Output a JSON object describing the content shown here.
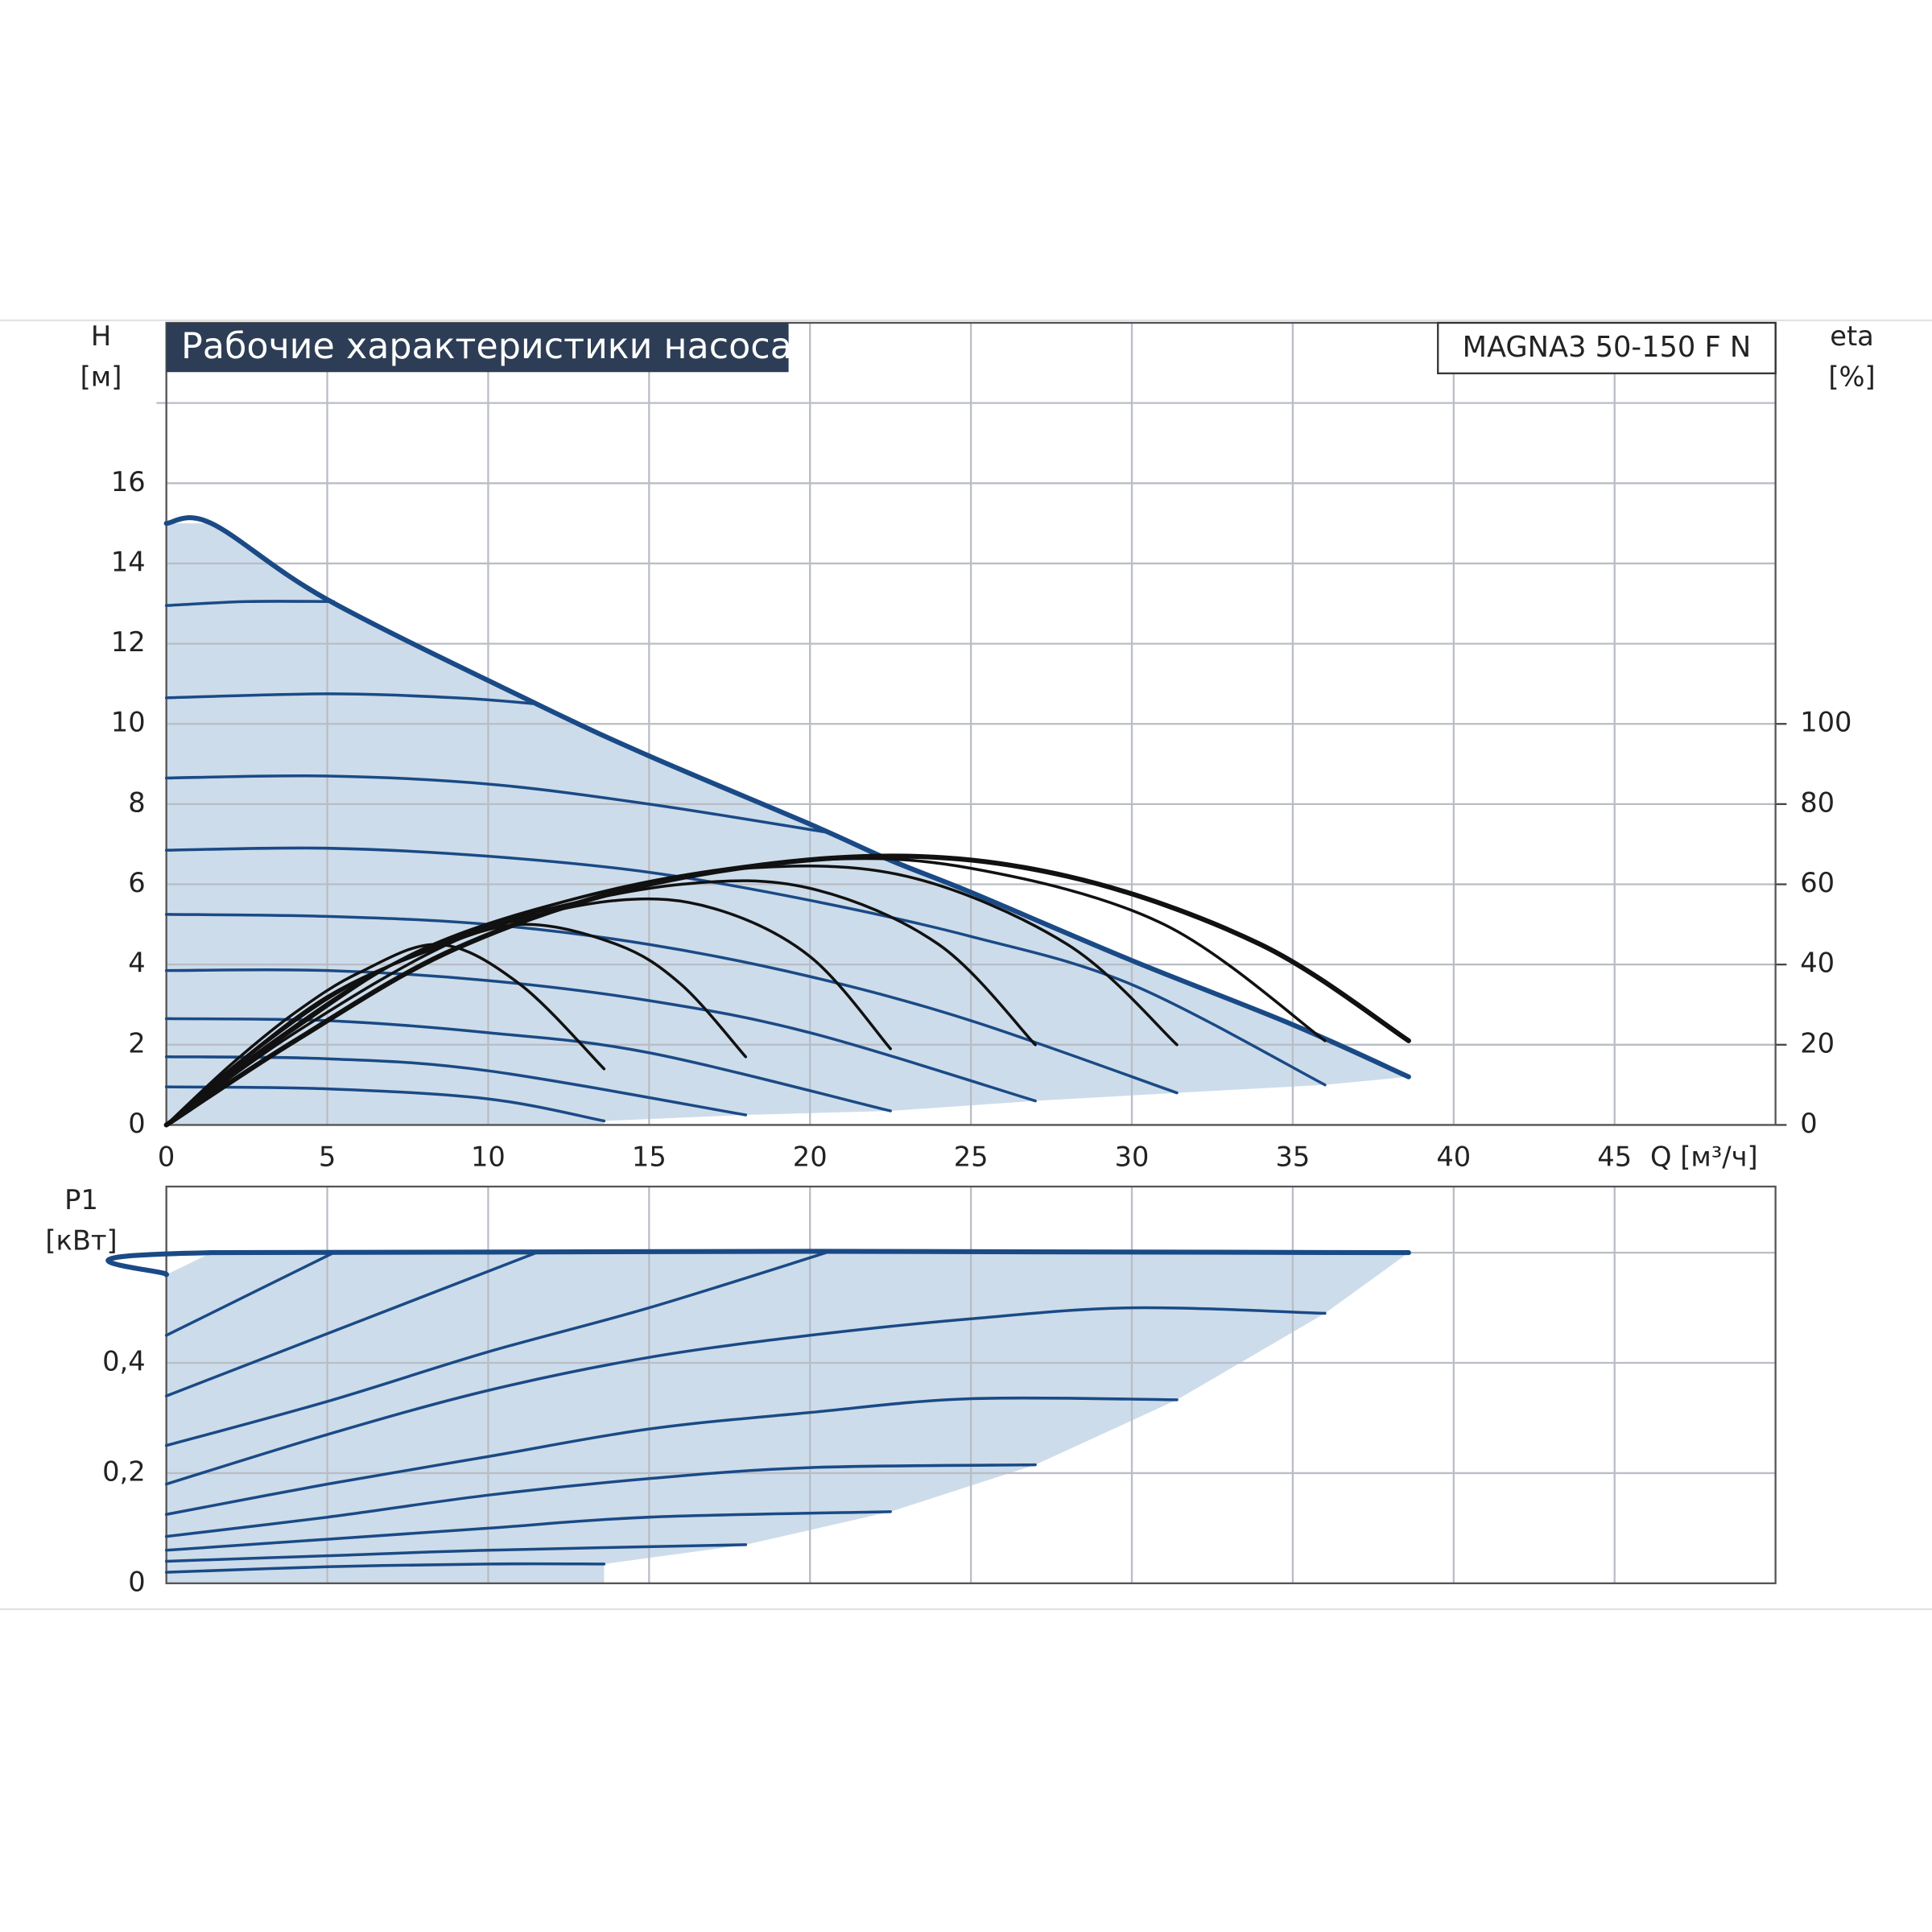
{
  "chart_data": [
    {
      "type": "line",
      "title": "Рабочие характеристики насоса",
      "model": "MAGNA3 50-150 F N",
      "ylabel_lines": [
        "H",
        "[м]"
      ],
      "y2label_lines": [
        "eta",
        "[%]"
      ],
      "xlabel": "Q [м³/ч]",
      "xlim": [
        0,
        50
      ],
      "xticks": [
        0,
        5,
        10,
        15,
        20,
        25,
        30,
        35,
        40,
        45
      ],
      "ylim": [
        0,
        20
      ],
      "yticks": [
        0,
        2,
        4,
        6,
        8,
        10,
        12,
        14,
        16
      ],
      "unlabeled_yticks": [
        18
      ],
      "y2lim": [
        0,
        200
      ],
      "y2ticks": [
        0,
        20,
        40,
        60,
        80,
        100
      ],
      "grid": true,
      "fill_color": "#cddcea",
      "series": [
        {
          "color": "#1a4a86",
          "x": [
            0,
            1.4,
            5,
            11.5,
            15,
            20,
            22.5,
            25,
            30,
            35,
            38.6
          ],
          "values": [
            15,
            15,
            13.1,
            10.5,
            9.2,
            7.5,
            6.6,
            5.8,
            4.1,
            2.5,
            1.2
          ]
        },
        {
          "color": "#1a4a86",
          "x": [
            0,
            2.5,
            5.2
          ],
          "values": [
            12.95,
            13.05,
            13.05
          ]
        },
        {
          "color": "#1a4a86",
          "x": [
            0,
            5,
            9,
            11.5
          ],
          "values": [
            10.65,
            10.75,
            10.65,
            10.5
          ]
        },
        {
          "color": "#1a4a86",
          "x": [
            0,
            5,
            10,
            15,
            20.5
          ],
          "values": [
            8.65,
            8.7,
            8.5,
            8.0,
            7.3
          ]
        },
        {
          "color": "#1a4a86",
          "x": [
            0,
            5,
            10,
            15,
            20,
            25,
            30,
            36
          ],
          "values": [
            6.85,
            6.9,
            6.7,
            6.3,
            5.6,
            4.7,
            3.5,
            1.0
          ]
        },
        {
          "color": "#1a4a86",
          "x": [
            0,
            5,
            10,
            15,
            20,
            25,
            31.4
          ],
          "values": [
            5.25,
            5.2,
            5.0,
            4.5,
            3.7,
            2.6,
            0.8
          ]
        },
        {
          "color": "#1a4a86",
          "x": [
            0,
            5,
            10,
            15,
            20,
            27
          ],
          "values": [
            3.85,
            3.85,
            3.6,
            3.1,
            2.3,
            0.6
          ]
        },
        {
          "color": "#1a4a86",
          "x": [
            0,
            5,
            10,
            15,
            22.5
          ],
          "values": [
            2.65,
            2.6,
            2.3,
            1.8,
            0.35
          ]
        },
        {
          "color": "#1a4a86",
          "x": [
            0,
            5,
            10,
            18
          ],
          "values": [
            1.7,
            1.65,
            1.35,
            0.25
          ]
        },
        {
          "color": "#1a4a86",
          "x": [
            0,
            5,
            10,
            13.6
          ],
          "values": [
            0.95,
            0.9,
            0.65,
            0.1
          ]
        },
        {
          "color": "#111111",
          "axis": "y2",
          "x": [
            0,
            2,
            4,
            6,
            8.5,
            11,
            13.6
          ],
          "values": [
            0,
            15,
            28,
            38,
            45,
            35,
            14
          ]
        },
        {
          "color": "#111111",
          "axis": "y2",
          "x": [
            0,
            2,
            5,
            8,
            11,
            14,
            16,
            18
          ],
          "values": [
            0,
            14,
            32,
            43,
            50,
            45,
            35,
            17
          ]
        },
        {
          "color": "#111111",
          "axis": "y2",
          "x": [
            0,
            3,
            6,
            10,
            14,
            17,
            20,
            22.5
          ],
          "values": [
            0,
            20,
            36,
            49,
            56,
            54,
            42,
            19
          ]
        },
        {
          "color": "#111111",
          "axis": "y2",
          "x": [
            0,
            3,
            7,
            11,
            16,
            20,
            24,
            27
          ],
          "values": [
            0,
            19,
            40,
            52,
            60,
            59,
            45,
            20
          ]
        },
        {
          "color": "#111111",
          "axis": "y2",
          "x": [
            0,
            4,
            8,
            13,
            18,
            23,
            28,
            31.4
          ],
          "values": [
            0,
            24,
            44,
            57,
            64,
            62,
            45,
            20
          ]
        },
        {
          "color": "#111111",
          "axis": "y2",
          "x": [
            0,
            4,
            9,
            14,
            20,
            25,
            31,
            36
          ],
          "values": [
            0,
            23,
            46,
            59,
            66,
            64,
            50,
            21
          ]
        },
        {
          "color": "#111111",
          "axis": "y2",
          "x": [
            0,
            4,
            9,
            15,
            22,
            28,
            34,
            38.6
          ],
          "values": [
            0,
            21,
            44,
            60,
            67,
            62,
            45,
            21
          ]
        }
      ]
    },
    {
      "type": "line",
      "ylabel_lines": [
        "P1",
        "[кВт]"
      ],
      "xlim": [
        0,
        50
      ],
      "ylim": [
        0,
        0.72
      ],
      "yticks": [
        0,
        {
          "value": 0.2,
          "label": "0,2"
        },
        {
          "value": 0.4,
          "label": "0,4"
        }
      ],
      "unlabeled_yticks": [
        0.6
      ],
      "grid": true,
      "fill_color": "#cddcea",
      "series": [
        {
          "color": "#1a4a86",
          "x": [
            0,
            1.4,
            38.6
          ],
          "values": [
            0.56,
            0.6,
            0.6
          ]
        },
        {
          "color": "#1a4a86",
          "x": [
            0,
            5.2
          ],
          "values": [
            0.45,
            0.6
          ]
        },
        {
          "color": "#1a4a86",
          "x": [
            0,
            11.5
          ],
          "values": [
            0.34,
            0.6
          ]
        },
        {
          "color": "#1a4a86",
          "x": [
            0,
            5,
            10,
            15,
            20.5
          ],
          "values": [
            0.25,
            0.33,
            0.42,
            0.5,
            0.6
          ]
        },
        {
          "color": "#1a4a86",
          "x": [
            0,
            5,
            10,
            15,
            20,
            25,
            30,
            36
          ],
          "values": [
            0.18,
            0.27,
            0.35,
            0.41,
            0.45,
            0.48,
            0.5,
            0.49
          ]
        },
        {
          "color": "#1a4a86",
          "x": [
            0,
            5,
            10,
            15,
            20,
            25,
            31.4
          ],
          "values": [
            0.125,
            0.18,
            0.23,
            0.28,
            0.31,
            0.335,
            0.333
          ]
        },
        {
          "color": "#1a4a86",
          "x": [
            0,
            5,
            10,
            15,
            20,
            27
          ],
          "values": [
            0.085,
            0.12,
            0.16,
            0.19,
            0.21,
            0.215
          ]
        },
        {
          "color": "#1a4a86",
          "x": [
            0,
            5,
            10,
            15,
            22.5
          ],
          "values": [
            0.06,
            0.08,
            0.1,
            0.12,
            0.13
          ]
        },
        {
          "color": "#1a4a86",
          "x": [
            0,
            5,
            10,
            18
          ],
          "values": [
            0.04,
            0.05,
            0.06,
            0.07
          ]
        },
        {
          "color": "#1a4a86",
          "x": [
            0,
            5,
            10,
            13.6
          ],
          "values": [
            0.02,
            0.03,
            0.035,
            0.035
          ]
        }
      ]
    }
  ]
}
